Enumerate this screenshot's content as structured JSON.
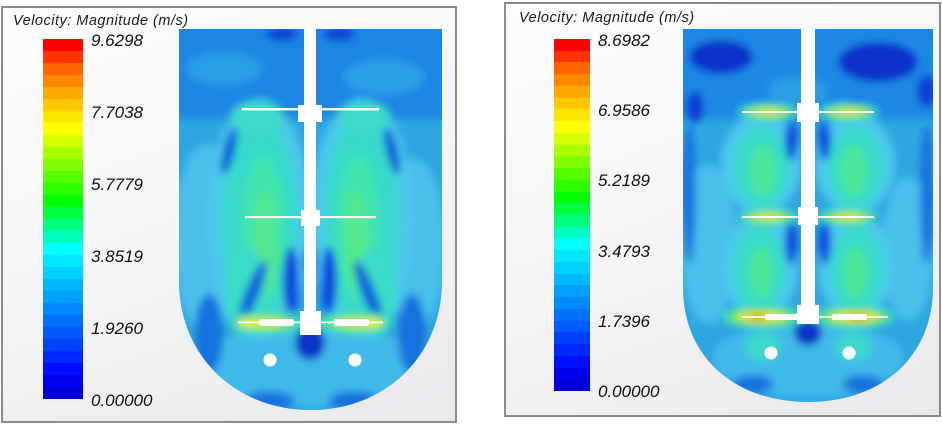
{
  "page": {
    "background": "#FFFFFF"
  },
  "panels": [
    {
      "title": "Velocity: Magnitude (m/s)",
      "ticks": [
        "9.6298",
        "7.7038",
        "5.7779",
        "3.8519",
        "1.9260",
        "0.00000"
      ]
    },
    {
      "title": "Velocity: Magnitude (m/s)",
      "ticks": [
        "8.6982",
        "6.9586",
        "5.2189",
        "3.4793",
        "1.7396",
        "0.00000"
      ]
    }
  ],
  "colorbar_colors": [
    "#FF0000",
    "#FF3300",
    "#FF6600",
    "#FF8800",
    "#FFAA00",
    "#FFC800",
    "#FFE800",
    "#FFFF00",
    "#D5FF00",
    "#AAFF00",
    "#80FF00",
    "#55FF00",
    "#2BFF00",
    "#00FF00",
    "#00FF40",
    "#00FF80",
    "#00FFBF",
    "#00FFFF",
    "#00E8FF",
    "#00D0FF",
    "#00B8FF",
    "#00A0FF",
    "#0088FF",
    "#0070FF",
    "#0058FF",
    "#0040FF",
    "#0028FF",
    "#0010FF",
    "#0000F0",
    "#0000D8"
  ],
  "chart_data": [
    {
      "type": "heatmap",
      "title": "Velocity: Magnitude (m/s)",
      "variable": "Velocity Magnitude",
      "units": "m/s",
      "colormap": "rainbow",
      "legend_position": "left",
      "colorbar_ticks": [
        9.6298,
        7.7038,
        5.7779,
        3.8519,
        1.926,
        0.0
      ],
      "value_range": [
        0.0,
        9.6298
      ],
      "scene": "CFD contour of velocity magnitude on vertical mid-plane of a stirred tank with round bottom, central shaft and three impellers; highest velocity (yellow-green jets) at bottom impeller blade tips, teal-green plumes above upper impellers, dark blue low-velocity zones near free surface"
    },
    {
      "type": "heatmap",
      "title": "Velocity: Magnitude (m/s)",
      "variable": "Velocity Magnitude",
      "units": "m/s",
      "colormap": "rainbow",
      "legend_position": "left",
      "colorbar_ticks": [
        8.6982,
        6.9586,
        5.2189,
        3.4793,
        1.7396,
        0.0
      ],
      "value_range": [
        0.0,
        8.6982
      ],
      "scene": "CFD contour of velocity magnitude on vertical mid-plane of a stirred tank with round bottom, central shaft and three impellers; yellow-green high-velocity jets at all three impeller tips with red spots at bottom impeller, dark navy dead zones near free surface"
    }
  ]
}
